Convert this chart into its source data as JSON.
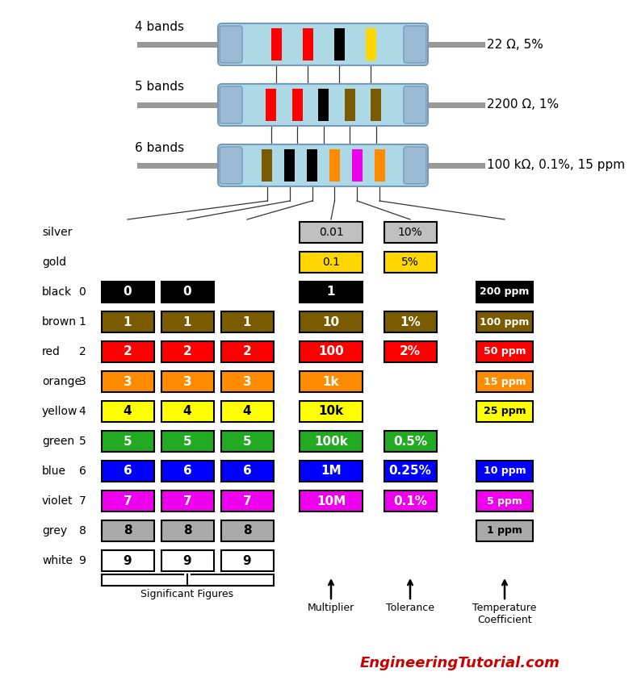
{
  "bg_color": "#ffffff",
  "colors": {
    "black": "#000000",
    "brown": "#7B5B00",
    "red": "#FF0000",
    "orange": "#FF8C00",
    "yellow": "#FFFF00",
    "green": "#22AA22",
    "blue": "#0000FF",
    "violet": "#EE00EE",
    "grey": "#AAAAAA",
    "white": "#FFFFFF",
    "gold": "#FFD700",
    "silver": "#C0C0C0",
    "light_blue": "#ADD8E6"
  },
  "color_names": [
    "black",
    "brown",
    "red",
    "orange",
    "yellow",
    "green",
    "blue",
    "violet",
    "grey",
    "white"
  ],
  "color_numbers": [
    0,
    1,
    2,
    3,
    4,
    5,
    6,
    7,
    8,
    9
  ],
  "sig_fig_1": [
    "0",
    "1",
    "2",
    "3",
    "4",
    "5",
    "6",
    "7",
    "8",
    "9"
  ],
  "sig_fig_2": [
    "0",
    "1",
    "2",
    "3",
    "4",
    "5",
    "6",
    "7",
    "8",
    "9"
  ],
  "sig_fig_3": [
    "",
    "1",
    "2",
    "3",
    "4",
    "5",
    "6",
    "7",
    "8",
    "9"
  ],
  "multiplier": [
    "1",
    "10",
    "100",
    "1k",
    "10k",
    "100k",
    "1M",
    "10M",
    "",
    ""
  ],
  "tolerance": [
    "",
    "1%",
    "2%",
    "",
    "",
    "0.5%",
    "0.25%",
    "0.1%",
    "",
    ""
  ],
  "temp_coef": [
    "200 ppm",
    "100 ppm",
    "50 ppm",
    "15 ppm",
    "25 ppm",
    "",
    "10 ppm",
    "5 ppm",
    "1 ppm",
    ""
  ],
  "silver_mult": "0.01",
  "silver_tol": "10%",
  "gold_mult": "0.1",
  "gold_tol": "5%",
  "resistor1_label": "22 Ω, 5%",
  "resistor2_label": "2200 Ω, 1%",
  "resistor3_label": "100 kΩ, 0.1%, 15 ppm",
  "bands1_label": "4 bands",
  "bands2_label": "5 bands",
  "bands3_label": "6 bands",
  "resistor1_bands": [
    "red",
    "red",
    "black",
    "gold"
  ],
  "resistor2_bands": [
    "red",
    "red",
    "black",
    "brown",
    "brown"
  ],
  "resistor3_bands": [
    "brown",
    "black",
    "black",
    "orange",
    "violet",
    "orange"
  ],
  "website": "EngineeringTutorial.com"
}
